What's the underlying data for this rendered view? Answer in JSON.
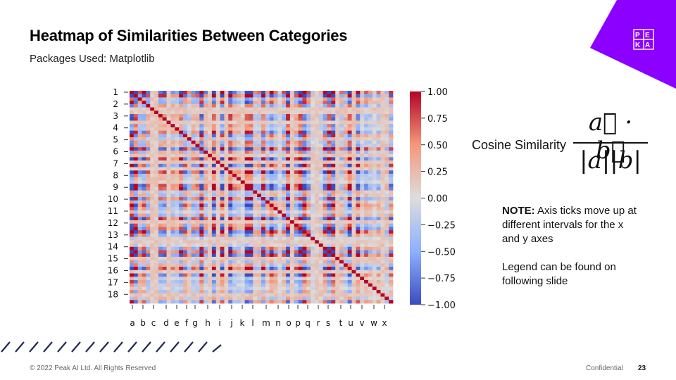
{
  "slide": {
    "title": "Heatmap of Similarities Between Categories",
    "subtitle": "Packages Used: Matplotlib",
    "brand_color": "#8b00ff",
    "logo_text": "PEAK"
  },
  "formula": {
    "label": "Cosine Similarity",
    "numerator": "a⃗ · b⃗",
    "denominator": "|a||b|"
  },
  "note": {
    "lead": "NOTE:",
    "text1": " Axis ticks move up at different intervals for the x and y axes",
    "text2": "Legend can be found on following slide"
  },
  "footer": {
    "copyright": "© 2022 Peak AI Ltd. All Rights Reserved",
    "confidential": "Confidential",
    "page_number": "23"
  },
  "chart_data": {
    "type": "heatmap",
    "title": "",
    "xlabel": "",
    "ylabel": "",
    "colormap": "coolwarm",
    "color_low": "#3b4cc0",
    "color_mid": "#dddddd",
    "color_high": "#b40426",
    "value_range": [
      -1.0,
      1.0
    ],
    "grid_size": 64,
    "y_tick_labels": [
      "1",
      "2",
      "3",
      "4",
      "5",
      "6",
      "7",
      "8",
      "9",
      "10",
      "11",
      "12",
      "13",
      "14",
      "15",
      "16",
      "17",
      "18"
    ],
    "x_tick_labels": [
      "a",
      "b",
      "c",
      "d",
      "e",
      "f",
      "g",
      "h",
      "i",
      "j",
      "k",
      "l",
      "m",
      "n",
      "o",
      "p",
      "q",
      "r",
      "s",
      "t",
      "u",
      "v",
      "w",
      "x"
    ],
    "colorbar_ticks": [
      {
        "value": 1.0,
        "label": "1.00"
      },
      {
        "value": 0.75,
        "label": "0.75"
      },
      {
        "value": 0.5,
        "label": "0.50"
      },
      {
        "value": 0.25,
        "label": "0.25"
      },
      {
        "value": 0.0,
        "label": "0.00"
      },
      {
        "value": -0.25,
        "label": "−0.25"
      },
      {
        "value": -0.5,
        "label": "−0.50"
      },
      {
        "value": -0.75,
        "label": "−0.75"
      },
      {
        "value": -1.0,
        "label": "−1.00"
      }
    ],
    "diagonal_value": 1.0
  }
}
